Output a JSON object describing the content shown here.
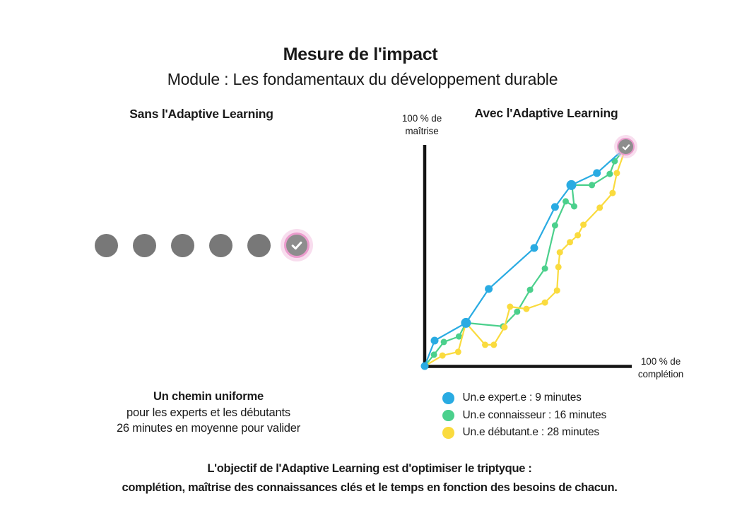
{
  "header": {
    "title": "Mesure de l'impact",
    "subtitle": "Module : Les fondamentaux du développement durable"
  },
  "left_panel": {
    "title": "Sans l'Adaptive Learning",
    "path_dot_count": 5,
    "caption_title": "Un chemin uniforme",
    "caption_line2": "pour les experts et les débutants",
    "caption_line3": "26 minutes en moyenne pour valider"
  },
  "right_panel": {
    "title": "Avec l'Adaptive Learning",
    "y_axis_label_line1": "100 % de",
    "y_axis_label_line2": "maîtrise",
    "x_axis_label_line1": "100 % de",
    "x_axis_label_line2": "complétion"
  },
  "footer": {
    "line1": "L'objectif de l'Adaptive Learning est d'optimiser le triptyque :",
    "line2": "complétion, maîtrise des connaissances clés et le temps en fonction des besoins de chacun."
  },
  "colors": {
    "expert_blue": "#29ABE2",
    "connaisseur_green": "#4BD08C",
    "debutant_yellow": "#FADB3E",
    "path_dot_gray": "#787878",
    "badge_gray": "#8D8D8D",
    "badge_ring_pink": "#EB9CCD",
    "badge_glow_pink": "rgba(242,193,224,0.55)",
    "ink": "#1A1A1A"
  },
  "chart_data": {
    "type": "line",
    "title": "Avec l'Adaptive Learning",
    "xlabel": "100 % de complétion",
    "ylabel": "100 % de maîtrise",
    "xlim": [
      0,
      100
    ],
    "ylim": [
      0,
      100
    ],
    "grid": false,
    "legend_position": "bottom-left",
    "endpoint_marker": "validated-check-badge",
    "series": [
      {
        "name": "Un.e expert.e : 9 minutes",
        "minutes": 9,
        "color": "#29ABE2",
        "shared_checkpoint_indices": [
          2,
          6
        ],
        "points": [
          [
            0,
            0
          ],
          [
            4.9,
            11.6
          ],
          [
            20.5,
            19.7
          ],
          [
            31.8,
            35.2
          ],
          [
            54.4,
            53.9
          ],
          [
            64.7,
            72.6
          ],
          [
            72.8,
            82.6
          ],
          [
            85.5,
            88.1
          ],
          [
            100,
            100
          ]
        ]
      },
      {
        "name": "Un.e connaisseur : 16 minutes",
        "minutes": 16,
        "color": "#4BD08C",
        "points": [
          [
            0,
            0
          ],
          [
            4.6,
            5.2
          ],
          [
            9.5,
            11
          ],
          [
            17,
            13.5
          ],
          [
            20.5,
            19.7
          ],
          [
            38.9,
            18.1
          ],
          [
            45.9,
            24.8
          ],
          [
            52.3,
            34.8
          ],
          [
            59.7,
            44.5
          ],
          [
            64.7,
            64.2
          ],
          [
            70,
            75.2
          ],
          [
            74.2,
            72.9
          ],
          [
            73.1,
            82.6
          ],
          [
            83,
            82.6
          ],
          [
            91.9,
            87.7
          ],
          [
            94.3,
            93.5
          ],
          [
            100,
            100
          ]
        ]
      },
      {
        "name": "Un.e débutant.e : 28 minutes",
        "minutes": 28,
        "color": "#FADB3E",
        "points": [
          [
            0,
            0
          ],
          [
            8.8,
            4.8
          ],
          [
            16.6,
            6.5
          ],
          [
            20.5,
            19.7
          ],
          [
            30,
            9.7
          ],
          [
            34.3,
            9.7
          ],
          [
            39.6,
            17.7
          ],
          [
            42.4,
            27.1
          ],
          [
            50.5,
            26.1
          ],
          [
            59.7,
            29
          ],
          [
            65.7,
            34.5
          ],
          [
            66.4,
            45.2
          ],
          [
            67.1,
            51.9
          ],
          [
            72.1,
            56.5
          ],
          [
            76,
            59.7
          ],
          [
            78.8,
            64.5
          ],
          [
            86.9,
            72.3
          ],
          [
            93.3,
            79
          ],
          [
            95.4,
            88.1
          ],
          [
            100,
            100
          ]
        ]
      }
    ]
  }
}
